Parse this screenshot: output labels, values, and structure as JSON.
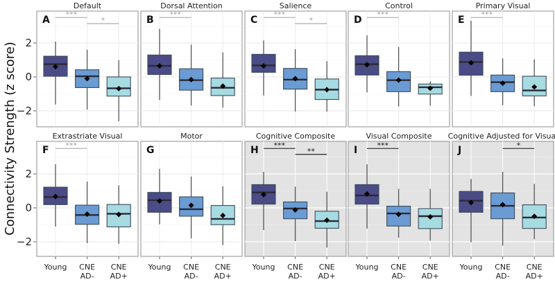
{
  "chart_data": {
    "type": "box",
    "ylabel": "Connectivity Strength (z score)",
    "ylim": [
      -2.9,
      3.9
    ],
    "yticks": [
      -2,
      0,
      2
    ],
    "ytick_labels": [
      "−2",
      "0",
      "2"
    ],
    "grid": true,
    "categories": [
      {
        "line1": "Young",
        "line2": ""
      },
      {
        "line1": "CNE",
        "line2": "AD-"
      },
      {
        "line1": "CNE",
        "line2": "AD+"
      }
    ],
    "colors": {
      "Young": "#4b4b86",
      "CNE AD-": "#6a9bd3",
      "CNE AD+": "#a6dbe2",
      "mean": "#000000",
      "median": "#2b2b36",
      "sig_light": "#a0a0a0",
      "sig_dark": "#111111",
      "panel_shaded": "#e3e3e3"
    },
    "panels": [
      {
        "letter": "A",
        "title": "Default",
        "shaded": false,
        "sig": [
          {
            "from": 0,
            "to": 1,
            "label": "***",
            "y": 3.5
          },
          {
            "from": 1,
            "to": 2,
            "label": "*",
            "y": 3.14
          }
        ],
        "boxes": [
          {
            "min": -1.63,
            "q1": 0.04,
            "median": 0.75,
            "q3": 1.22,
            "max": 2.08,
            "mean": 0.6
          },
          {
            "min": -1.93,
            "q1": -0.63,
            "median": 0.04,
            "q3": 0.42,
            "max": 1.6,
            "mean": -0.1
          },
          {
            "min": -2.61,
            "q1": -1.13,
            "median": -0.67,
            "q3": 0.0,
            "max": 0.99,
            "mean": -0.69
          }
        ]
      },
      {
        "letter": "B",
        "title": "Dorsal Attention",
        "shaded": false,
        "sig": [
          {
            "from": 0,
            "to": 1,
            "label": "***",
            "y": 3.5
          }
        ],
        "boxes": [
          {
            "min": -1.36,
            "q1": 0.14,
            "median": 0.65,
            "q3": 1.29,
            "max": 2.83,
            "mean": 0.65
          },
          {
            "min": -1.69,
            "q1": -0.78,
            "median": -0.19,
            "q3": 0.48,
            "max": 1.9,
            "mean": -0.16
          },
          {
            "min": -1.82,
            "q1": -1.1,
            "median": -0.64,
            "q3": -0.07,
            "max": 1.44,
            "mean": -0.54
          }
        ]
      },
      {
        "letter": "C",
        "title": "Salience",
        "shaded": false,
        "sig": [
          {
            "from": 0,
            "to": 1,
            "label": "***",
            "y": 3.5
          },
          {
            "from": 1,
            "to": 2,
            "label": "*",
            "y": 3.14
          }
        ],
        "boxes": [
          {
            "min": -1.09,
            "q1": 0.27,
            "median": 0.68,
            "q3": 1.33,
            "max": 2.15,
            "mean": 0.65
          },
          {
            "min": -2.04,
            "q1": -0.72,
            "median": -0.16,
            "q3": 0.5,
            "max": 1.63,
            "mean": -0.1
          },
          {
            "min": -2.04,
            "q1": -1.33,
            "median": -0.75,
            "q3": -0.12,
            "max": 0.93,
            "mean": -0.75
          }
        ]
      },
      {
        "letter": "D",
        "title": "Control",
        "shaded": false,
        "sig": [
          {
            "from": 0,
            "to": 1,
            "label": "***",
            "y": 3.5
          }
        ],
        "boxes": [
          {
            "min": -0.91,
            "q1": 0.11,
            "median": 0.75,
            "q3": 1.25,
            "max": 2.45,
            "mean": 0.72
          },
          {
            "min": -1.74,
            "q1": -0.87,
            "median": -0.19,
            "q3": 0.31,
            "max": 1.76,
            "mean": -0.19
          },
          {
            "min": -1.7,
            "q1": -1.01,
            "median": -0.61,
            "q3": -0.42,
            "max": -0.26,
            "mean": -0.67
          }
        ]
      },
      {
        "letter": "E",
        "title": "Primary Visual",
        "shaded": false,
        "sig": [
          {
            "from": 0,
            "to": 1,
            "label": "***",
            "y": 3.5
          }
        ],
        "boxes": [
          {
            "min": -1.12,
            "q1": 0.1,
            "median": 0.88,
            "q3": 1.46,
            "max": 3.31,
            "mean": 0.83
          },
          {
            "min": -1.67,
            "q1": -0.87,
            "median": -0.31,
            "q3": 0.11,
            "max": 1.09,
            "mean": -0.37
          },
          {
            "min": -1.73,
            "q1": -1.12,
            "median": -0.8,
            "q3": 0.04,
            "max": 1.03,
            "mean": -0.59
          }
        ]
      },
      {
        "letter": "F",
        "title": "Extrastriate Visual",
        "shaded": false,
        "sig": [
          {
            "from": 0,
            "to": 1,
            "label": "***",
            "y": 3.5
          }
        ],
        "boxes": [
          {
            "min": -1.1,
            "q1": 0.19,
            "median": 0.64,
            "q3": 1.22,
            "max": 2.57,
            "mean": 0.67
          },
          {
            "min": -2.08,
            "q1": -0.97,
            "median": -0.42,
            "q3": 0.16,
            "max": 1.55,
            "mean": -0.37
          },
          {
            "min": -2.12,
            "q1": -1.12,
            "median": -0.35,
            "q3": 0.2,
            "max": 1.33,
            "mean": -0.39
          }
        ]
      },
      {
        "letter": "G",
        "title": "Motor",
        "shaded": false,
        "sig": [],
        "boxes": [
          {
            "min": -0.97,
            "q1": -0.26,
            "median": 0.45,
            "q3": 0.91,
            "max": 2.3,
            "mean": 0.41
          },
          {
            "min": -1.8,
            "q1": -0.49,
            "median": -0.08,
            "q3": 0.65,
            "max": 1.85,
            "mean": 0.15
          },
          {
            "min": -2.19,
            "q1": -0.99,
            "median": -0.65,
            "q3": 0.14,
            "max": 1.27,
            "mean": -0.45
          }
        ]
      },
      {
        "letter": "H",
        "title": "Cognitive Composite",
        "shaded": true,
        "sig": [
          {
            "from": 0,
            "to": 1,
            "label": "***",
            "y": 3.5
          },
          {
            "from": 1,
            "to": 2,
            "label": "**",
            "y": 3.15
          }
        ],
        "boxes": [
          {
            "min": -1.31,
            "q1": 0.22,
            "median": 0.91,
            "q3": 1.37,
            "max": 2.12,
            "mean": 0.78
          },
          {
            "min": -1.96,
            "q1": -0.64,
            "median": -0.04,
            "q3": 0.35,
            "max": 1.25,
            "mean": -0.12
          },
          {
            "min": -2.34,
            "q1": -1.2,
            "median": -0.78,
            "q3": -0.2,
            "max": 0.95,
            "mean": -0.73
          }
        ]
      },
      {
        "letter": "I",
        "title": "Visual Composite",
        "shaded": true,
        "sig": [
          {
            "from": 0,
            "to": 1,
            "label": "***",
            "y": 3.5
          }
        ],
        "boxes": [
          {
            "min": -1.22,
            "q1": 0.22,
            "median": 0.73,
            "q3": 1.37,
            "max": 2.57,
            "mean": 0.82
          },
          {
            "min": -1.76,
            "q1": -1.07,
            "median": -0.33,
            "q3": 0.1,
            "max": 1.12,
            "mean": -0.38
          },
          {
            "min": -1.93,
            "q1": -1.22,
            "median": -0.49,
            "q3": -0.04,
            "max": 1.12,
            "mean": -0.53
          }
        ]
      },
      {
        "letter": "J",
        "title": "Cognitive Adjusted for Visual",
        "shaded": true,
        "sig": [
          {
            "from": 1,
            "to": 2,
            "label": "*",
            "y": 3.5
          }
        ],
        "boxes": [
          {
            "min": -2.03,
            "q1": -0.26,
            "median": 0.42,
            "q3": 0.97,
            "max": 1.7,
            "mean": 0.31
          },
          {
            "min": -2.22,
            "q1": -0.64,
            "median": 0.12,
            "q3": 0.88,
            "max": 2.12,
            "mean": 0.19
          },
          {
            "min": -1.85,
            "q1": -1.21,
            "median": -0.57,
            "q3": 0.18,
            "max": 1.41,
            "mean": -0.5
          }
        ]
      }
    ]
  }
}
